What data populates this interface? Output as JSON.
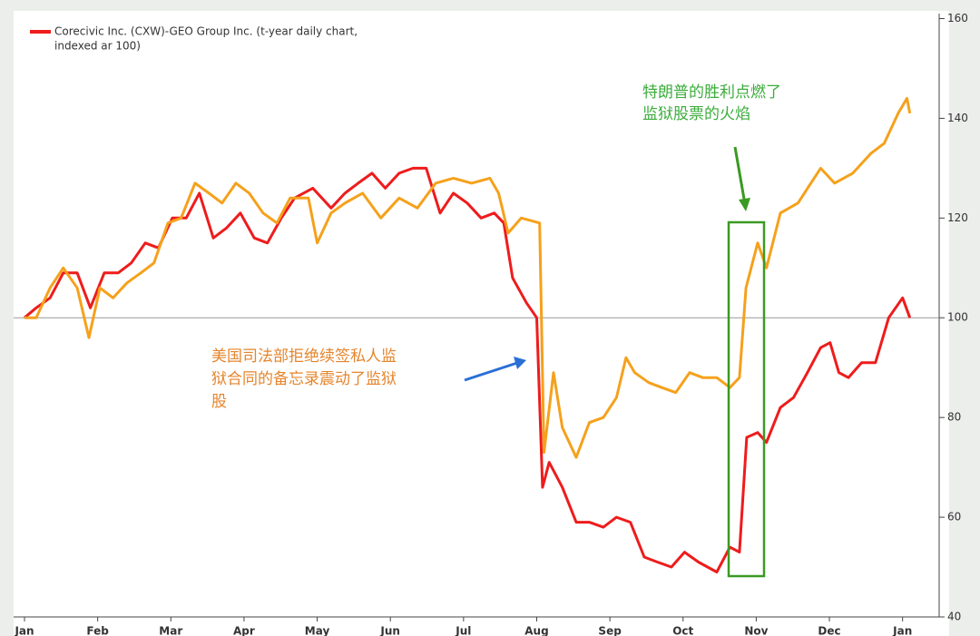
{
  "chart_data": {
    "type": "line",
    "legend_text": [
      "Corecivic Inc. (CXW)-GEO Group Inc. (t-year daily chart,",
      "indexed ar 100)"
    ],
    "annotations": [
      [
        "特朗普的胜利点燃了",
        "监狱股票的火焰"
      ],
      [
        "美国司法部拒绝续签私人监",
        "狱合同的备忘录震动了监狱",
        "股"
      ]
    ],
    "xlim": [
      0,
      12.5
    ],
    "xticks": [
      {
        "value": 0,
        "label": "Jan"
      },
      {
        "value": 1,
        "label": "Feb"
      },
      {
        "value": 2,
        "label": "Mar"
      },
      {
        "value": 3,
        "label": "Apr"
      },
      {
        "value": 4,
        "label": "May"
      },
      {
        "value": 5,
        "label": "Jun"
      },
      {
        "value": 6,
        "label": "Jul"
      },
      {
        "value": 7,
        "label": "Aug"
      },
      {
        "value": 8,
        "label": "Sep"
      },
      {
        "value": 9,
        "label": "Oct"
      },
      {
        "value": 10,
        "label": "Nov"
      },
      {
        "value": 11,
        "label": "Dec"
      },
      {
        "value": 12,
        "label": "Jan"
      }
    ],
    "ylim": [
      40,
      161
    ],
    "yticks": [
      40,
      60,
      80,
      100,
      120,
      140,
      160
    ],
    "reference_line": 100,
    "series": [
      {
        "color": "#ee1c1c",
        "x": [
          0,
          0.16,
          0.35,
          0.53,
          0.72,
          0.9,
          1.09,
          1.28,
          1.46,
          1.65,
          1.83,
          2.02,
          2.21,
          2.39,
          2.58,
          2.76,
          2.95,
          3.14,
          3.32,
          3.51,
          3.69,
          3.94,
          4.19,
          4.38,
          4.56,
          4.75,
          4.93,
          5.12,
          5.31,
          5.49,
          5.68,
          5.86,
          6.05,
          6.24,
          6.42,
          6.55,
          6.67,
          6.86,
          7.0,
          7.08,
          7.17,
          7.35,
          7.54,
          7.72,
          7.91,
          8.09,
          8.28,
          8.47,
          8.65,
          8.84,
          9.02,
          9.21,
          9.46,
          9.64,
          9.77,
          9.87,
          10.02,
          10.14,
          10.33,
          10.51,
          10.7,
          10.88,
          11.01,
          11.13,
          11.26,
          11.44,
          11.63,
          11.81,
          12.0,
          12.1
        ],
        "values": [
          100,
          102,
          104,
          109,
          109,
          102,
          109,
          109,
          111,
          115,
          114,
          120,
          120,
          125,
          116,
          118,
          121,
          116,
          115,
          120,
          124,
          126,
          122,
          125,
          127,
          129,
          126,
          129,
          130,
          130,
          121,
          125,
          123,
          120,
          121,
          119,
          108,
          103,
          100,
          66,
          71,
          66,
          59,
          59,
          58,
          60,
          59,
          52,
          51,
          50,
          53,
          51,
          49,
          54,
          53,
          76,
          77,
          75,
          82,
          84,
          89,
          94,
          95,
          89,
          88,
          91,
          91,
          100,
          104,
          100
        ]
      },
      {
        "color": "#f5a11c",
        "x": [
          0,
          0.16,
          0.35,
          0.53,
          0.72,
          0.88,
          1.03,
          1.21,
          1.4,
          1.59,
          1.77,
          1.96,
          2.14,
          2.33,
          2.52,
          2.7,
          2.89,
          3.07,
          3.26,
          3.45,
          3.63,
          3.88,
          4.0,
          4.19,
          4.38,
          4.62,
          4.87,
          5.12,
          5.37,
          5.62,
          5.86,
          6.11,
          6.36,
          6.48,
          6.61,
          6.79,
          7.04,
          7.1,
          7.23,
          7.35,
          7.54,
          7.72,
          7.91,
          8.09,
          8.22,
          8.34,
          8.53,
          8.71,
          8.9,
          9.09,
          9.27,
          9.46,
          9.64,
          9.77,
          9.86,
          10.02,
          10.14,
          10.33,
          10.57,
          10.88,
          11.07,
          11.32,
          11.57,
          11.75,
          11.94,
          12.06,
          12.1
        ],
        "values": [
          100,
          100,
          106,
          110,
          106,
          96,
          106,
          104,
          107,
          109,
          111,
          119,
          120,
          127,
          125,
          123,
          127,
          125,
          121,
          119,
          124,
          124,
          115,
          121,
          123,
          125,
          120,
          124,
          122,
          127,
          128,
          127,
          128,
          125,
          117,
          120,
          119,
          73,
          89,
          78,
          72,
          79,
          80,
          84,
          92,
          89,
          87,
          86,
          85,
          89,
          88,
          88,
          86,
          88,
          106,
          115,
          110,
          121,
          123,
          130,
          127,
          129,
          133,
          135,
          141,
          144,
          141
        ]
      }
    ]
  }
}
